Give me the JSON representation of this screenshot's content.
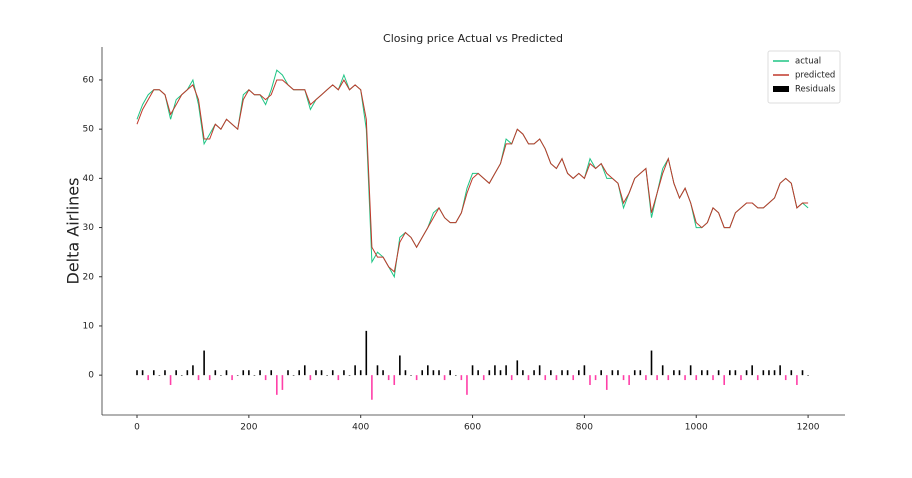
{
  "chart_data": {
    "type": "line",
    "title": "Closing price Actual  vs Predicted",
    "y_label": "Delta Airlines",
    "x": [
      0,
      10,
      20,
      30,
      40,
      50,
      60,
      70,
      80,
      90,
      100,
      110,
      120,
      130,
      140,
      150,
      160,
      170,
      180,
      190,
      200,
      210,
      220,
      230,
      240,
      250,
      260,
      270,
      280,
      290,
      300,
      310,
      320,
      330,
      340,
      350,
      360,
      370,
      380,
      390,
      400,
      410,
      420,
      430,
      440,
      450,
      460,
      470,
      480,
      490,
      500,
      510,
      520,
      530,
      540,
      550,
      560,
      570,
      580,
      590,
      600,
      610,
      620,
      630,
      640,
      650,
      660,
      670,
      680,
      690,
      700,
      710,
      720,
      730,
      740,
      750,
      760,
      770,
      780,
      790,
      800,
      810,
      820,
      830,
      840,
      850,
      860,
      870,
      880,
      890,
      900,
      910,
      920,
      930,
      940,
      950,
      960,
      970,
      980,
      990,
      1000,
      1010,
      1020,
      1030,
      1040,
      1050,
      1060,
      1070,
      1080,
      1090,
      1100,
      1110,
      1120,
      1130,
      1140,
      1150,
      1160,
      1170,
      1180,
      1190,
      1200
    ],
    "series": [
      {
        "name": "actual",
        "type": "line",
        "color": "#1fc484",
        "values": [
          52,
          55,
          57,
          58,
          58,
          57,
          52,
          56,
          57,
          58,
          60,
          55,
          47,
          49,
          51,
          50,
          52,
          51,
          50,
          57,
          58,
          57,
          57,
          55,
          58,
          62,
          61,
          59,
          58,
          58,
          58,
          54,
          56,
          57,
          58,
          59,
          58,
          61,
          58,
          59,
          58,
          50,
          23,
          25,
          24,
          22,
          20,
          28,
          29,
          28,
          26,
          28,
          30,
          33,
          34,
          32,
          31,
          31,
          33,
          38,
          41,
          41,
          40,
          39,
          41,
          43,
          48,
          47,
          50,
          49,
          47,
          47,
          48,
          46,
          43,
          42,
          44,
          41,
          40,
          41,
          40,
          44,
          42,
          43,
          40,
          40,
          39,
          34,
          37,
          40,
          41,
          42,
          32,
          37,
          42,
          44,
          39,
          36,
          38,
          35,
          30,
          30,
          31,
          34,
          33,
          30,
          30,
          33,
          34,
          35,
          35,
          34,
          34,
          35,
          36,
          39,
          40,
          39,
          34,
          35,
          34
        ]
      },
      {
        "name": "predicted",
        "type": "line",
        "color": "#c0392b",
        "values": [
          51,
          54,
          56,
          58,
          58,
          57,
          53,
          55,
          57,
          58,
          59,
          56,
          48,
          48,
          51,
          50,
          52,
          51,
          50,
          56,
          58,
          57,
          57,
          56,
          57,
          60,
          60,
          59,
          58,
          58,
          58,
          55,
          56,
          57,
          58,
          59,
          58,
          60,
          58,
          59,
          58,
          52,
          26,
          24,
          24,
          22,
          21,
          27,
          29,
          28,
          26,
          28,
          30,
          32,
          34,
          32,
          31,
          31,
          33,
          37,
          40,
          41,
          40,
          39,
          41,
          43,
          47,
          47,
          50,
          49,
          47,
          47,
          48,
          46,
          43,
          42,
          44,
          41,
          40,
          41,
          40,
          43,
          42,
          43,
          41,
          40,
          39,
          35,
          37,
          40,
          41,
          42,
          33,
          37,
          41,
          44,
          39,
          36,
          38,
          35,
          31,
          30,
          31,
          34,
          33,
          30,
          30,
          33,
          34,
          35,
          35,
          34,
          34,
          35,
          36,
          39,
          40,
          39,
          34,
          35,
          35
        ]
      },
      {
        "name": "Residuals",
        "type": "bar",
        "color": "#000000",
        "negative_color": "#ff3fa8",
        "values": [
          1,
          1,
          -1,
          1,
          0,
          1,
          -2,
          1,
          0,
          1,
          2,
          -1,
          5,
          -1,
          1,
          0,
          1,
          -1,
          0,
          1,
          1,
          0,
          1,
          -1,
          1,
          -4,
          -3,
          1,
          0,
          1,
          2,
          -1,
          1,
          1,
          0,
          1,
          -1,
          1,
          0,
          2,
          1,
          9,
          -5,
          2,
          1,
          -1,
          -2,
          4,
          1,
          0,
          -1,
          1,
          2,
          1,
          1,
          -1,
          1,
          0,
          -1,
          -4,
          2,
          1,
          -1,
          1,
          2,
          1,
          2,
          -1,
          3,
          1,
          -1,
          1,
          2,
          -1,
          1,
          -1,
          1,
          1,
          -1,
          1,
          2,
          -2,
          -1,
          1,
          -3,
          1,
          1,
          -1,
          -2,
          1,
          1,
          -1,
          5,
          -1,
          2,
          -1,
          1,
          1,
          -1,
          2,
          -1,
          1,
          1,
          -1,
          1,
          -2,
          1,
          1,
          -1,
          1,
          2,
          -1,
          1,
          1,
          1,
          2,
          -1,
          1,
          -2,
          1,
          0
        ]
      }
    ],
    "xlim": [
      -62.6,
      1266
    ],
    "xticks": [
      0,
      200,
      400,
      600,
      800,
      1000,
      1200
    ],
    "ylim": [
      -8.1,
      66.7
    ],
    "yticks": [
      0,
      10,
      20,
      30,
      40,
      50,
      60
    ],
    "legend": "upper right"
  }
}
